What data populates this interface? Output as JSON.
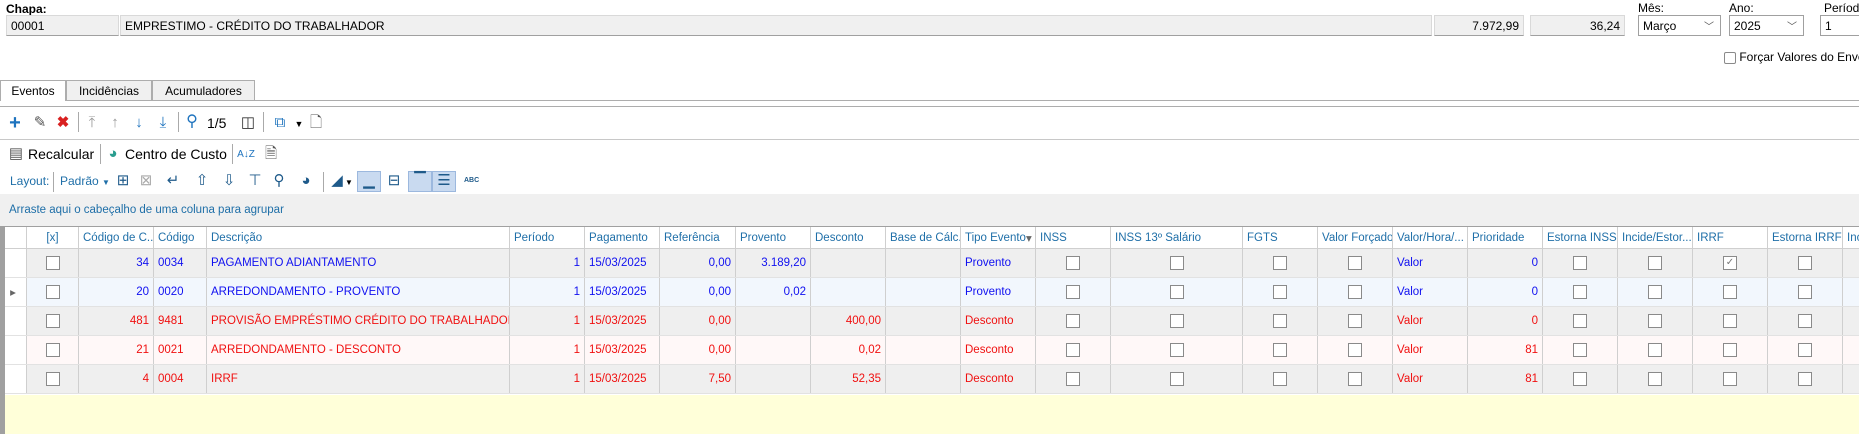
{
  "header": {
    "chapa_label": "Chapa:",
    "chapa_code": "00001",
    "chapa_name": "EMPRESTIMO - CRÉDITO DO TRABALHADOR",
    "value1": "7.972,99",
    "value2": "36,24",
    "mes_label": "Mês:",
    "mes_value": "Março",
    "ano_label": "Ano:",
    "ano_value": "2025",
    "periodo_label": "Período",
    "periodo_value": "1",
    "forcar_label": "Forçar Valores do Envelo",
    "forcar_checked": false
  },
  "tabs": [
    {
      "label": "Eventos",
      "active": true
    },
    {
      "label": "Incidências"
    },
    {
      "label": "Acumuladores"
    }
  ],
  "toolbar": {
    "page_indicator": "1/5",
    "recalcular": "Recalcular",
    "centro_custo": "Centro de Custo",
    "layout_label": "Layout:",
    "layout_value": "Padrão",
    "abc": "ABC"
  },
  "grid": {
    "group_hint": "Arraste aqui o cabeçalho de uma coluna para agrupar",
    "columns": [
      "[x]",
      "Código de C...",
      "Código",
      "Descrição",
      "Período",
      "Pagamento",
      "Referência",
      "Provento",
      "Desconto",
      "Base de Cálc...",
      "Tipo Evento",
      "INSS",
      "INSS 13º Salário",
      "FGTS",
      "Valor Forçado",
      "Valor/Hora/...",
      "Prioridade",
      "Estorna INSS",
      "Incide/Estor...",
      "IRRF",
      "Estorna IRRF",
      "Inc"
    ],
    "colors": {
      "provento": "#1010f0",
      "desconto": "#f01010",
      "header": "#1f6fa8"
    },
    "rows": [
      {
        "sel": false,
        "cod_calc": "34",
        "codigo": "0034",
        "descricao": "PAGAMENTO ADIANTAMENTO",
        "periodo": "1",
        "pagamento": "15/03/2025",
        "referencia": "0,00",
        "provento": "3.189,20",
        "desconto": "",
        "base": "",
        "tipo": "Provento",
        "inss": false,
        "inss13": false,
        "fgts": false,
        "valor_forcado": false,
        "valor_hora": "Valor",
        "prioridade": "0",
        "estorna_inss": false,
        "incide_estor": false,
        "irrf": true,
        "estorna_irrf": false,
        "current": false
      },
      {
        "sel": false,
        "cod_calc": "20",
        "codigo": "0020",
        "descricao": "ARREDONDAMENTO - PROVENTO",
        "periodo": "1",
        "pagamento": "15/03/2025",
        "referencia": "0,00",
        "provento": "0,02",
        "desconto": "",
        "base": "",
        "tipo": "Provento",
        "inss": false,
        "inss13": false,
        "fgts": false,
        "valor_forcado": false,
        "valor_hora": "Valor",
        "prioridade": "0",
        "estorna_inss": false,
        "incide_estor": false,
        "irrf": false,
        "estorna_irrf": false,
        "current": true
      },
      {
        "sel": false,
        "cod_calc": "481",
        "codigo": "9481",
        "descricao": "PROVISÃO EMPRÉSTIMO CRÉDITO DO TRABALHADOR FO...",
        "periodo": "1",
        "pagamento": "15/03/2025",
        "referencia": "0,00",
        "provento": "",
        "desconto": "400,00",
        "base": "",
        "tipo": "Desconto",
        "inss": false,
        "inss13": false,
        "fgts": false,
        "valor_forcado": false,
        "valor_hora": "Valor",
        "prioridade": "0",
        "estorna_inss": false,
        "incide_estor": false,
        "irrf": false,
        "estorna_irrf": false,
        "current": false
      },
      {
        "sel": false,
        "cod_calc": "21",
        "codigo": "0021",
        "descricao": "ARREDONDAMENTO - DESCONTO",
        "periodo": "1",
        "pagamento": "15/03/2025",
        "referencia": "0,00",
        "provento": "",
        "desconto": "0,02",
        "base": "",
        "tipo": "Desconto",
        "inss": false,
        "inss13": false,
        "fgts": false,
        "valor_forcado": false,
        "valor_hora": "Valor",
        "prioridade": "81",
        "estorna_inss": false,
        "incide_estor": false,
        "irrf": false,
        "estorna_irrf": false,
        "current": false
      },
      {
        "sel": false,
        "cod_calc": "4",
        "codigo": "0004",
        "descricao": "IRRF",
        "periodo": "1",
        "pagamento": "15/03/2025",
        "referencia": "7,50",
        "provento": "",
        "desconto": "52,35",
        "base": "",
        "tipo": "Desconto",
        "inss": false,
        "inss13": false,
        "fgts": false,
        "valor_forcado": false,
        "valor_hora": "Valor",
        "prioridade": "81",
        "estorna_inss": false,
        "incide_estor": false,
        "irrf": false,
        "estorna_irrf": false,
        "current": false
      }
    ]
  }
}
